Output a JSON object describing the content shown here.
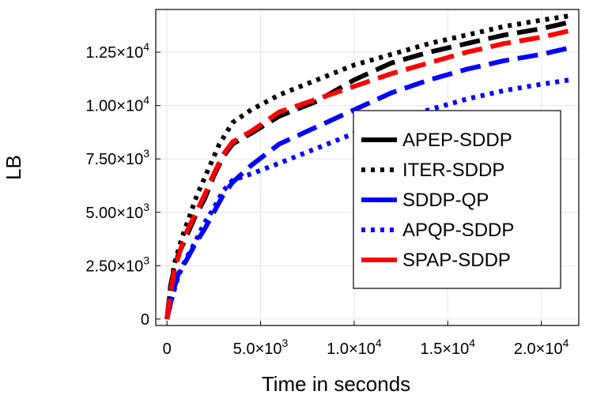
{
  "chart_data": {
    "type": "line",
    "title": "",
    "xlabel": "Time in seconds",
    "ylabel": "LB",
    "xlim": [
      -600,
      22000
    ],
    "ylim": [
      -300,
      14500
    ],
    "grid": true,
    "legend_position": "right",
    "x_ticks": [
      {
        "value": 0,
        "mantissa": "0",
        "exp": ""
      },
      {
        "value": 5000,
        "mantissa": "5.0×10",
        "exp": "3"
      },
      {
        "value": 10000,
        "mantissa": "1.0×10",
        "exp": "4"
      },
      {
        "value": 15000,
        "mantissa": "1.5×10",
        "exp": "4"
      },
      {
        "value": 20000,
        "mantissa": "2.0×10",
        "exp": "4"
      }
    ],
    "y_ticks": [
      {
        "value": 0,
        "mantissa": "0",
        "exp": ""
      },
      {
        "value": 2500,
        "mantissa": "2.50×10",
        "exp": "3"
      },
      {
        "value": 5000,
        "mantissa": "5.00×10",
        "exp": "3"
      },
      {
        "value": 7500,
        "mantissa": "7.50×10",
        "exp": "3"
      },
      {
        "value": 10000,
        "mantissa": "1.00×10",
        "exp": "4"
      },
      {
        "value": 12500,
        "mantissa": "1.25×10",
        "exp": "4"
      }
    ],
    "series": [
      {
        "name": "APEP-SDDP",
        "color": "#000000",
        "style": "dash",
        "x": [
          0,
          200,
          400,
          600,
          1000,
          1500,
          2000,
          2500,
          3000,
          3500,
          4500,
          6000,
          8000,
          10000,
          12000,
          14000,
          16000,
          18000,
          20000,
          21500
        ],
        "y": [
          0,
          1600,
          2400,
          3000,
          3800,
          4800,
          5600,
          6700,
          7600,
          8200,
          8700,
          9500,
          10200,
          11200,
          12000,
          12500,
          12900,
          13300,
          13600,
          13900
        ]
      },
      {
        "name": "ITER-SDDP",
        "color": "#000000",
        "style": "dot",
        "x": [
          0,
          200,
          400,
          800,
          1200,
          1600,
          2200,
          2800,
          3500,
          4500,
          6000,
          8000,
          10000,
          12000,
          14000,
          16000,
          18000,
          20000,
          21500
        ],
        "y": [
          0,
          1500,
          2600,
          3800,
          4800,
          5800,
          7000,
          8200,
          9200,
          9800,
          10500,
          11200,
          11900,
          12400,
          12900,
          13300,
          13700,
          14000,
          14200
        ]
      },
      {
        "name": "SDDP-QP",
        "color": "#0000ff",
        "style": "dash",
        "x": [
          0,
          300,
          600,
          1000,
          1500,
          2000,
          2500,
          3000,
          3500,
          4500,
          6000,
          8000,
          10000,
          12000,
          14000,
          16000,
          18000,
          20000,
          21500
        ],
        "y": [
          0,
          1200,
          2100,
          2700,
          3500,
          4200,
          5000,
          5800,
          6400,
          7200,
          8200,
          9000,
          9800,
          10600,
          11200,
          11700,
          12100,
          12400,
          12700
        ]
      },
      {
        "name": "APQP-SDDP",
        "color": "#0000ff",
        "style": "dot",
        "x": [
          0,
          300,
          600,
          1000,
          1500,
          2000,
          2500,
          3000,
          3500,
          4500,
          6000,
          8000,
          10000,
          12000,
          14000,
          16000,
          18000,
          20000,
          21500
        ],
        "y": [
          0,
          1100,
          2000,
          2800,
          3600,
          4500,
          5200,
          6000,
          6500,
          6800,
          7300,
          8000,
          8700,
          9300,
          9800,
          10300,
          10700,
          11000,
          11200
        ]
      },
      {
        "name": "SPAP-SDDP",
        "color": "#ff0000",
        "style": "dash",
        "x": [
          0,
          200,
          400,
          700,
          1000,
          1500,
          2000,
          2500,
          3000,
          3500,
          4500,
          6000,
          8000,
          10000,
          12000,
          14000,
          16000,
          18000,
          20000,
          21500
        ],
        "y": [
          0,
          1300,
          2300,
          3200,
          4000,
          4900,
          5800,
          6800,
          7700,
          8300,
          8800,
          9700,
          10300,
          10900,
          11500,
          12000,
          12500,
          12900,
          13200,
          13500
        ]
      }
    ]
  }
}
